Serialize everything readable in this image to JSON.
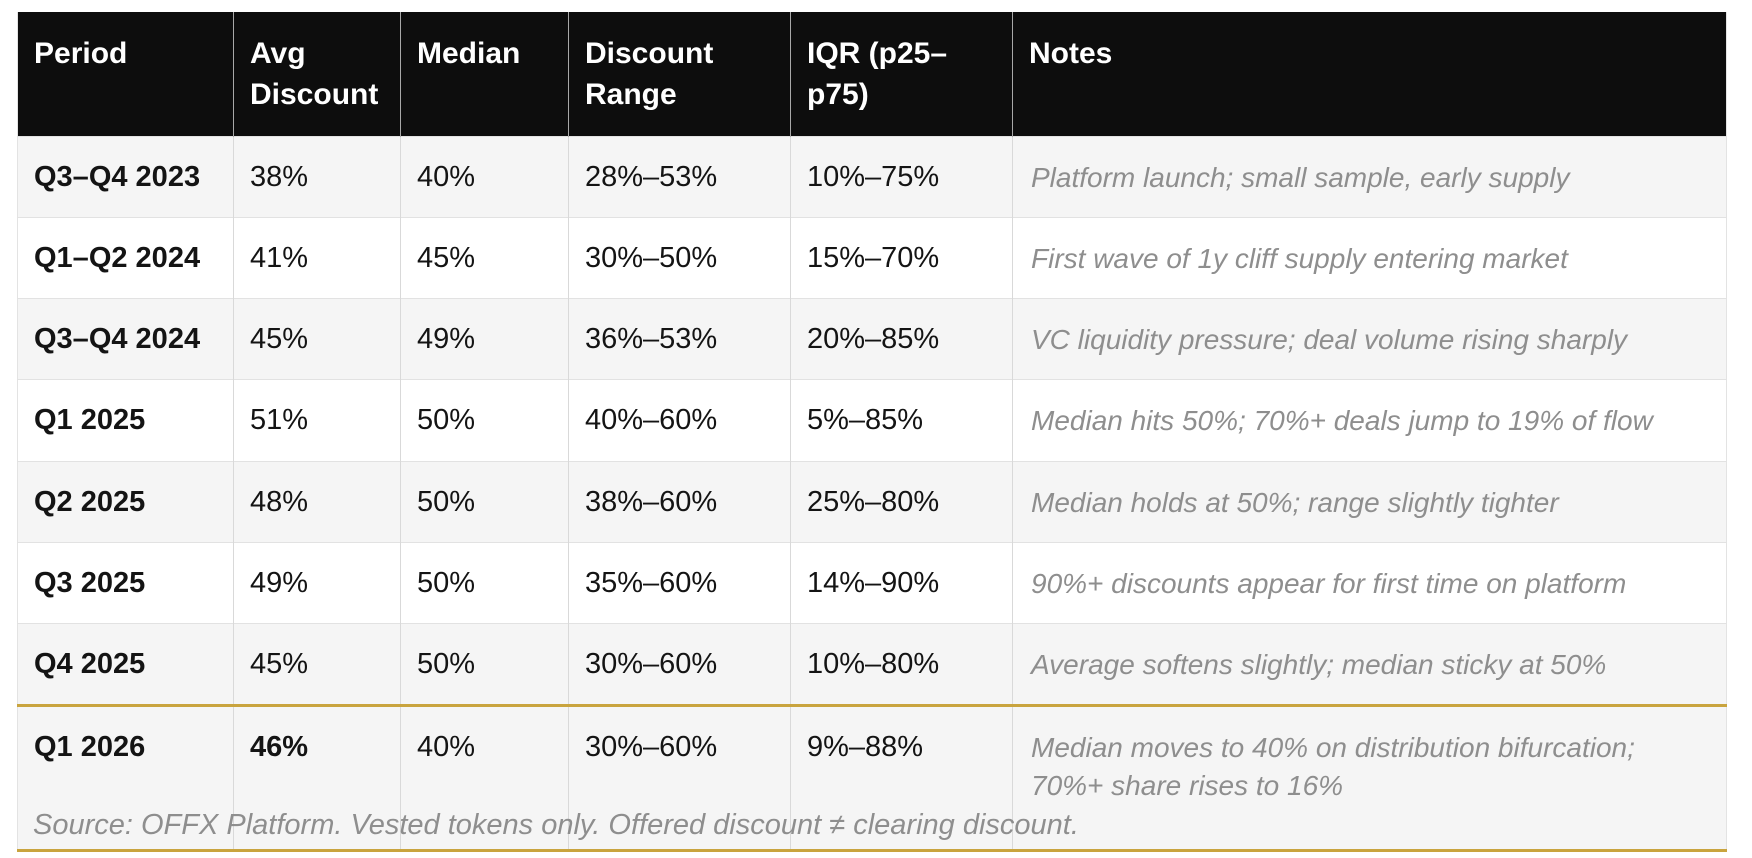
{
  "chart_data": {
    "type": "table",
    "columns": [
      "Period",
      "Avg Discount",
      "Median",
      "Discount Range",
      "IQR (p25–p75)",
      "Notes"
    ],
    "rows": [
      {
        "period": "Q3–Q4 2023",
        "avg_discount": "38%",
        "median": "40%",
        "discount_range": "28%–53%",
        "iqr": "10%–75%",
        "notes": "Platform launch; small sample, early supply"
      },
      {
        "period": "Q1–Q2 2024",
        "avg_discount": "41%",
        "median": "45%",
        "discount_range": "30%–50%",
        "iqr": "15%–70%",
        "notes": "First wave of 1y cliff supply entering market"
      },
      {
        "period": "Q3–Q4 2024",
        "avg_discount": "45%",
        "median": "49%",
        "discount_range": "36%–53%",
        "iqr": "20%–85%",
        "notes": "VC liquidity pressure; deal volume rising sharply"
      },
      {
        "period": "Q1 2025",
        "avg_discount": "51%",
        "median": "50%",
        "discount_range": "40%–60%",
        "iqr": "5%–85%",
        "notes": "Median hits 50%; 70%+ deals jump to 19% of flow"
      },
      {
        "period": "Q2 2025",
        "avg_discount": "48%",
        "median": "50%",
        "discount_range": "38%–60%",
        "iqr": "25%–80%",
        "notes": "Median holds at 50%; range slightly tighter"
      },
      {
        "period": "Q3 2025",
        "avg_discount": "49%",
        "median": "50%",
        "discount_range": "35%–60%",
        "iqr": "14%–90%",
        "notes": "90%+ discounts appear for first time on platform"
      },
      {
        "period": "Q4 2025",
        "avg_discount": "45%",
        "median": "50%",
        "discount_range": "30%–60%",
        "iqr": "10%–80%",
        "notes": "Average softens slightly; median sticky at 50%"
      },
      {
        "period": "Q1 2026",
        "avg_discount": "46%",
        "median": "40%",
        "discount_range": "30%–60%",
        "iqr": "9%–88%",
        "notes": "Median moves to 40% on distribution bifurcation; 70%+ share rises to 16%"
      }
    ],
    "highlighted_row": "Q1 2026",
    "source_note": "Source: OFFX Platform. Vested tokens only. Offered discount ≠ clearing discount.",
    "layout_hints": {
      "header_style": "black background, white bold text",
      "alternating_rows": true,
      "highlight_row_borders": "gold top and bottom"
    }
  },
  "colors": {
    "header_bg": "#0d0d0d",
    "header_text": "#ffffff",
    "alt_row_bg": "#f5f5f5",
    "row_bg": "#ffffff",
    "body_text": "#141414",
    "notes_text": "#8e8e8e",
    "highlight_border": "#c9a43e",
    "grid_line": "#d9d9d9"
  }
}
